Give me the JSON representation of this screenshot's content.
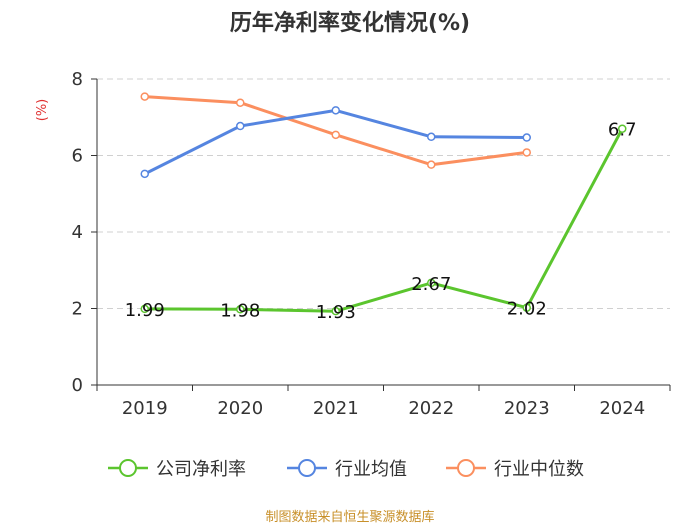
{
  "chart_data": {
    "type": "line",
    "title": "历年净利率变化情况(%)",
    "ylabel": "(%)",
    "xlabel": "",
    "categories": [
      "2019",
      "2020",
      "2021",
      "2022",
      "2023",
      "2024"
    ],
    "ylim": [
      0,
      8
    ],
    "yticks": [
      0,
      2,
      4,
      6,
      8
    ],
    "grid": true,
    "legend_position": "bottom",
    "series": [
      {
        "name": "公司净利率",
        "color": "#5bc52e",
        "values": [
          1.99,
          1.98,
          1.93,
          2.67,
          2.02,
          6.7
        ],
        "labels": [
          "1.99",
          "1.98",
          "1.93",
          "2.67",
          "2.02",
          "6.7"
        ]
      },
      {
        "name": "行业均值",
        "color": "#5585e0",
        "values": [
          5.52,
          6.77,
          7.18,
          6.49,
          6.47,
          null
        ]
      },
      {
        "name": "行业中位数",
        "color": "#fb8f5f",
        "values": [
          7.54,
          7.38,
          6.54,
          5.76,
          6.08,
          null
        ]
      }
    ]
  },
  "source": "制图数据来自恒生聚源数据库"
}
